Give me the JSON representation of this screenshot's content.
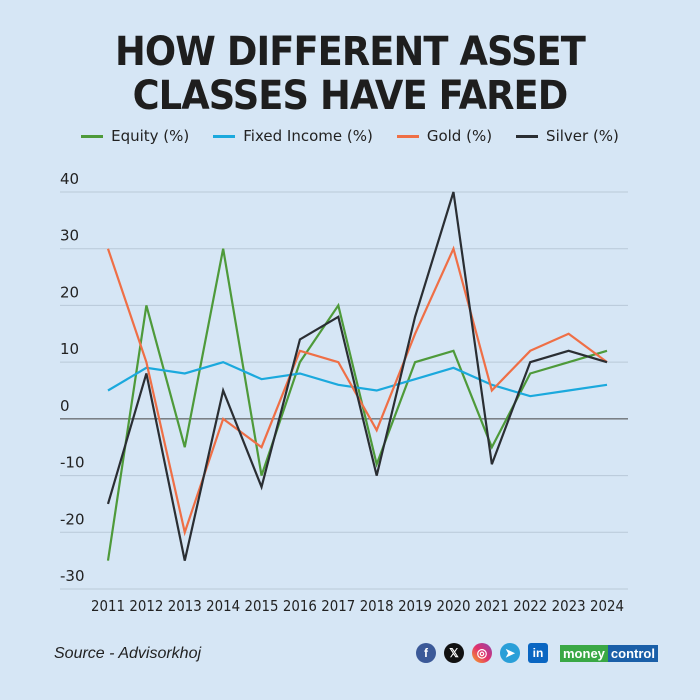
{
  "title_line1": "HOW DIFFERENT ASSET",
  "title_line2": "CLASSES HAVE FARED",
  "source": "Source - Advisorkhoj",
  "brand": {
    "part1": "money",
    "part2": "control"
  },
  "icons": [
    "facebook-icon",
    "x-icon",
    "instagram-icon",
    "telegram-icon",
    "linkedin-icon"
  ],
  "chart_data": {
    "type": "line",
    "title": "HOW DIFFERENT ASSET CLASSES HAVE FARED",
    "xlabel": "",
    "ylabel": "",
    "ylim": [
      -30,
      40
    ],
    "yticks": [
      40,
      30,
      20,
      10,
      0,
      -10,
      -20,
      -30
    ],
    "categories": [
      "2011",
      "2012",
      "2013",
      "2014",
      "2015",
      "2016",
      "2017",
      "2018",
      "2019",
      "2020",
      "2021",
      "2022",
      "2023",
      "2024"
    ],
    "legend_position": "top",
    "grid": true,
    "series": [
      {
        "name": "Equity (%)",
        "color": "#4e9a3a",
        "values": [
          -25,
          20,
          -5,
          30,
          -10,
          10,
          20,
          -8,
          10,
          12,
          -5,
          8,
          10,
          12
        ]
      },
      {
        "name": "Fixed Income (%)",
        "color": "#1ba9dd",
        "values": [
          5,
          9,
          8,
          10,
          7,
          8,
          6,
          5,
          7,
          9,
          6,
          4,
          5,
          6
        ]
      },
      {
        "name": "Gold (%)",
        "color": "#ef6f46",
        "values": [
          30,
          10,
          -20,
          0,
          -5,
          12,
          10,
          -2,
          15,
          30,
          5,
          12,
          15,
          10
        ]
      },
      {
        "name": "Silver (%)",
        "color": "#2a2e33",
        "values": [
          -15,
          8,
          -25,
          5,
          -12,
          14,
          18,
          -10,
          18,
          40,
          -8,
          10,
          12,
          10
        ]
      }
    ]
  }
}
